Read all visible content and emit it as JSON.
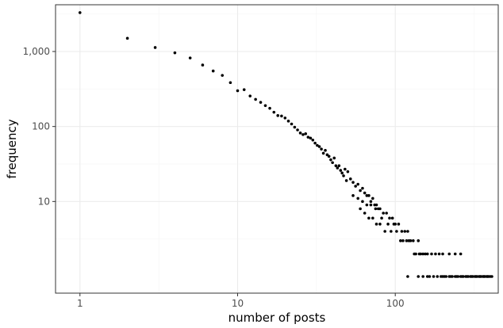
{
  "chart_data": {
    "type": "scatter",
    "title": "",
    "xlabel": "number of posts",
    "ylabel": "frequency",
    "x_scale": "log10",
    "y_scale": "log10",
    "xlim": [
      0.7,
      450
    ],
    "ylim": [
      0.6,
      4200
    ],
    "grid": true,
    "legend": "none",
    "x_ticks": [
      {
        "value": 1,
        "label": "1"
      },
      {
        "value": 10,
        "label": "10"
      },
      {
        "value": 100,
        "label": "100"
      }
    ],
    "y_ticks": [
      {
        "value": 10,
        "label": "10"
      },
      {
        "value": 100,
        "label": "100"
      },
      {
        "value": 1000,
        "label": "1,000"
      }
    ],
    "colors": {
      "point": "#000000",
      "panel_border": "#333333",
      "grid_major": "#ebebeb",
      "grid_minor": "#f5f5f5"
    },
    "points": [
      [
        1,
        3300
      ],
      [
        2,
        1500
      ],
      [
        3,
        1130
      ],
      [
        4,
        960
      ],
      [
        5,
        820
      ],
      [
        6,
        660
      ],
      [
        7,
        550
      ],
      [
        8,
        480
      ],
      [
        9,
        385
      ],
      [
        10,
        300
      ],
      [
        11,
        310
      ],
      [
        12,
        255
      ],
      [
        13,
        230
      ],
      [
        14,
        210
      ],
      [
        15,
        190
      ],
      [
        16,
        175
      ],
      [
        17,
        155
      ],
      [
        18,
        140
      ],
      [
        19,
        138
      ],
      [
        20,
        130
      ],
      [
        21,
        118
      ],
      [
        22,
        108
      ],
      [
        23,
        98
      ],
      [
        24,
        90
      ],
      [
        25,
        82
      ],
      [
        26,
        78
      ],
      [
        27,
        80
      ],
      [
        28,
        72
      ],
      [
        29,
        70
      ],
      [
        30,
        66
      ],
      [
        31,
        60
      ],
      [
        32,
        56
      ],
      [
        33,
        54
      ],
      [
        34,
        50
      ],
      [
        35,
        44
      ],
      [
        36,
        48
      ],
      [
        37,
        42
      ],
      [
        38,
        40
      ],
      [
        39,
        36
      ],
      [
        40,
        33
      ],
      [
        41,
        38
      ],
      [
        42,
        30
      ],
      [
        43,
        28
      ],
      [
        44,
        30
      ],
      [
        45,
        26
      ],
      [
        46,
        24
      ],
      [
        47,
        22
      ],
      [
        48,
        27
      ],
      [
        49,
        19
      ],
      [
        50,
        25
      ],
      [
        52,
        20
      ],
      [
        54,
        18
      ],
      [
        56,
        16
      ],
      [
        58,
        17
      ],
      [
        60,
        14
      ],
      [
        62,
        15
      ],
      [
        64,
        13
      ],
      [
        66,
        12
      ],
      [
        68,
        12
      ],
      [
        70,
        10
      ],
      [
        72,
        11
      ],
      [
        74,
        9
      ],
      [
        76,
        9
      ],
      [
        78,
        8
      ],
      [
        80,
        8
      ],
      [
        84,
        7
      ],
      [
        88,
        7
      ],
      [
        92,
        6
      ],
      [
        96,
        6
      ],
      [
        100,
        5
      ],
      [
        105,
        5
      ],
      [
        110,
        4
      ],
      [
        115,
        4
      ],
      [
        120,
        4
      ],
      [
        125,
        3
      ],
      [
        130,
        3
      ],
      [
        140,
        3
      ],
      [
        150,
        2
      ],
      [
        160,
        2
      ],
      [
        170,
        2
      ],
      [
        180,
        2
      ],
      [
        190,
        2
      ],
      [
        200,
        2
      ],
      [
        220,
        2
      ],
      [
        240,
        2
      ],
      [
        260,
        2
      ],
      [
        280,
        1
      ],
      [
        300,
        1
      ],
      [
        320,
        1
      ],
      [
        340,
        1
      ],
      [
        360,
        1
      ],
      [
        380,
        1
      ],
      [
        400,
        1
      ],
      [
        54,
        12
      ],
      [
        58,
        11
      ],
      [
        62,
        10
      ],
      [
        66,
        9
      ],
      [
        70,
        9
      ],
      [
        75,
        8
      ],
      [
        82,
        6
      ],
      [
        90,
        5
      ],
      [
        98,
        5
      ],
      [
        108,
        3
      ],
      [
        118,
        3
      ],
      [
        135,
        2
      ],
      [
        145,
        2
      ],
      [
        165,
        1
      ],
      [
        175,
        1
      ],
      [
        195,
        1
      ],
      [
        210,
        1
      ],
      [
        230,
        1
      ],
      [
        250,
        1
      ],
      [
        270,
        1
      ],
      [
        290,
        1
      ],
      [
        310,
        1
      ],
      [
        330,
        1
      ],
      [
        350,
        1
      ],
      [
        370,
        1
      ],
      [
        390,
        1
      ],
      [
        410,
        1
      ],
      [
        60,
        8
      ],
      [
        64,
        7
      ],
      [
        68,
        6
      ],
      [
        72,
        6
      ],
      [
        76,
        5
      ],
      [
        80,
        5
      ],
      [
        86,
        4
      ],
      [
        94,
        4
      ],
      [
        102,
        4
      ],
      [
        112,
        3
      ],
      [
        122,
        3
      ],
      [
        132,
        2
      ],
      [
        142,
        2
      ],
      [
        155,
        2
      ],
      [
        185,
        1
      ],
      [
        205,
        1
      ],
      [
        225,
        1
      ],
      [
        245,
        1
      ],
      [
        265,
        1
      ],
      [
        285,
        1
      ],
      [
        305,
        1
      ],
      [
        325,
        1
      ],
      [
        345,
        1
      ],
      [
        365,
        1
      ],
      [
        385,
        1
      ],
      [
        120,
        1
      ],
      [
        140,
        1
      ],
      [
        150,
        1
      ],
      [
        160,
        1
      ],
      [
        200,
        1
      ],
      [
        220,
        1
      ],
      [
        240,
        1
      ],
      [
        260,
        1
      ]
    ]
  }
}
